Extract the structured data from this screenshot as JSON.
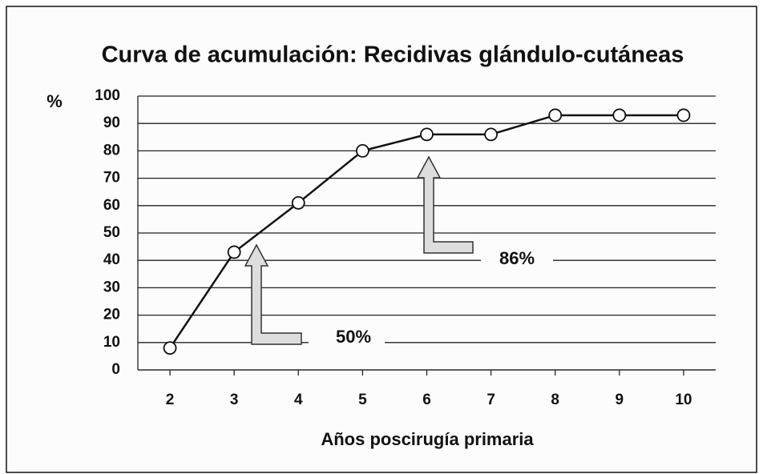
{
  "chart_data": {
    "type": "line",
    "title": "Curva de acumulación: Recidivas glándulo-cutáneas",
    "y_label": "%",
    "x_label": "Años poscirugía primaria",
    "x": [
      2,
      3,
      4,
      5,
      6,
      7,
      8,
      9,
      10
    ],
    "values": [
      8,
      43,
      61,
      80,
      86,
      86,
      93,
      93,
      93
    ],
    "color": "#111111",
    "xlim": [
      1.5,
      10.5
    ],
    "xticks": [
      2,
      3,
      4,
      5,
      6,
      7,
      8,
      9,
      10
    ],
    "ylim": [
      0,
      100
    ],
    "yticks": [
      0,
      10,
      20,
      30,
      40,
      50,
      60,
      70,
      80,
      90,
      100
    ],
    "grid": true,
    "annotations": [
      "50%",
      "86%"
    ]
  }
}
